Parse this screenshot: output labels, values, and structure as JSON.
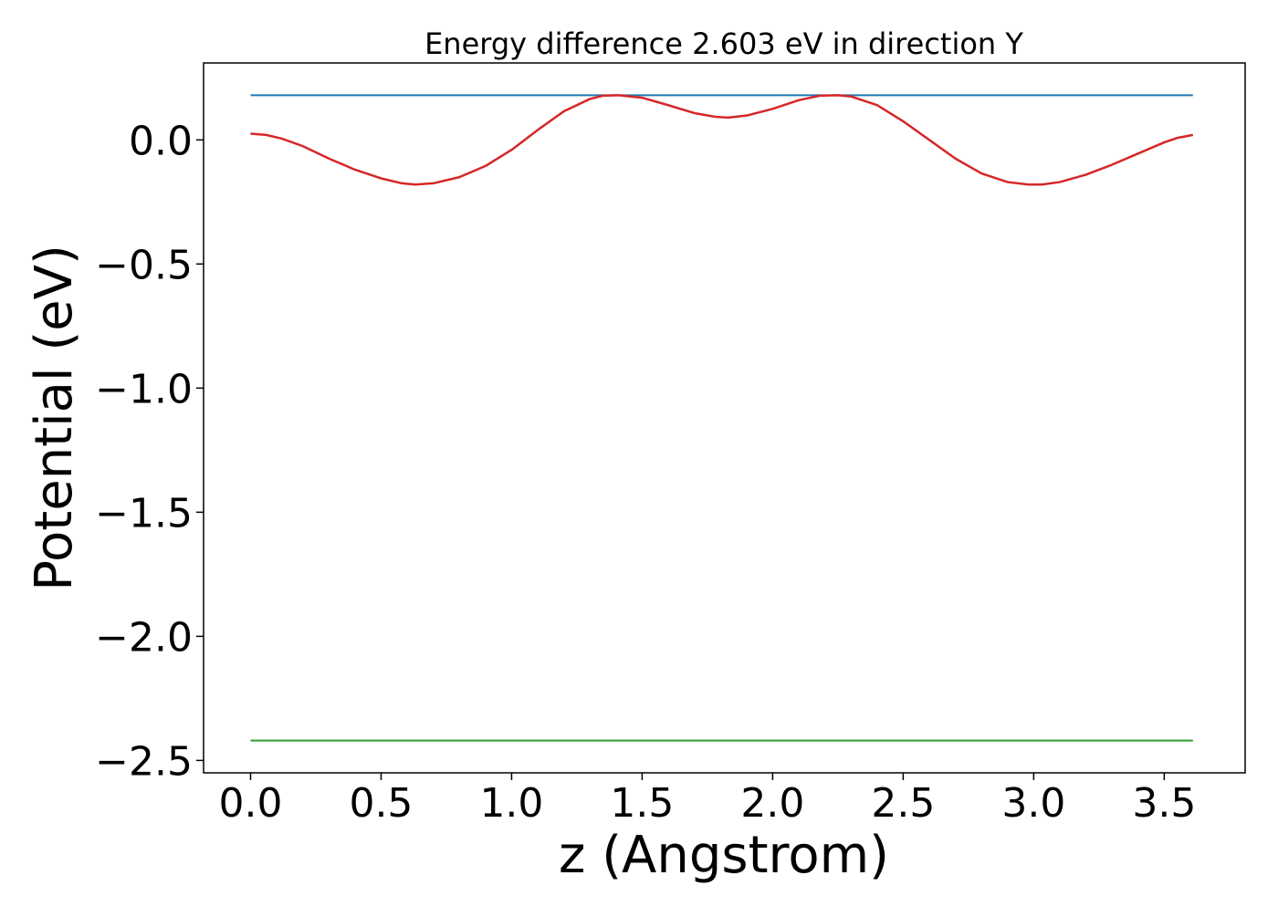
{
  "chart_data": {
    "type": "line",
    "title": "Energy difference 2.603 eV in direction Y",
    "xlabel": "z (Angstrom)",
    "ylabel": "Potential (eV)",
    "xlim": [
      -0.18,
      3.81
    ],
    "ylim": [
      -2.55,
      0.31
    ],
    "xticks": [
      0.0,
      0.5,
      1.0,
      1.5,
      2.0,
      2.5,
      3.0,
      3.5
    ],
    "xtick_labels": [
      "0.0",
      "0.5",
      "1.0",
      "1.5",
      "2.0",
      "2.5",
      "3.0",
      "3.5"
    ],
    "yticks": [
      0.0,
      -0.5,
      -1.0,
      -1.5,
      -2.0,
      -2.5
    ],
    "ytick_labels": [
      "0.0",
      "−0.5",
      "−1.0",
      "−1.5",
      "−2.0",
      "−2.5"
    ],
    "grid": false,
    "legend": "none",
    "series": [
      {
        "color": "#1f77b4",
        "x": [
          0.0,
          3.61
        ],
        "y": [
          0.18,
          0.18
        ]
      },
      {
        "color": "#2ca02c",
        "x": [
          0.0,
          3.61
        ],
        "y": [
          -2.42,
          -2.42
        ]
      },
      {
        "color": "#d62728",
        "x": [
          0.0,
          0.06,
          0.12,
          0.2,
          0.3,
          0.4,
          0.5,
          0.58,
          0.63,
          0.7,
          0.8,
          0.9,
          1.0,
          1.1,
          1.2,
          1.3,
          1.35,
          1.41,
          1.5,
          1.6,
          1.7,
          1.78,
          1.83,
          1.9,
          2.0,
          2.1,
          2.18,
          2.25,
          2.3,
          2.4,
          2.5,
          2.6,
          2.7,
          2.8,
          2.9,
          2.98,
          3.03,
          3.1,
          3.2,
          3.3,
          3.4,
          3.5,
          3.55,
          3.61
        ],
        "y": [
          0.025,
          0.02,
          0.005,
          -0.025,
          -0.075,
          -0.12,
          -0.155,
          -0.175,
          -0.18,
          -0.175,
          -0.15,
          -0.105,
          -0.04,
          0.04,
          0.115,
          0.165,
          0.178,
          0.18,
          0.17,
          0.14,
          0.108,
          0.093,
          0.09,
          0.098,
          0.125,
          0.16,
          0.178,
          0.18,
          0.175,
          0.14,
          0.075,
          0.0,
          -0.075,
          -0.135,
          -0.17,
          -0.18,
          -0.18,
          -0.17,
          -0.14,
          -0.1,
          -0.055,
          -0.01,
          0.008,
          0.02
        ]
      }
    ]
  }
}
